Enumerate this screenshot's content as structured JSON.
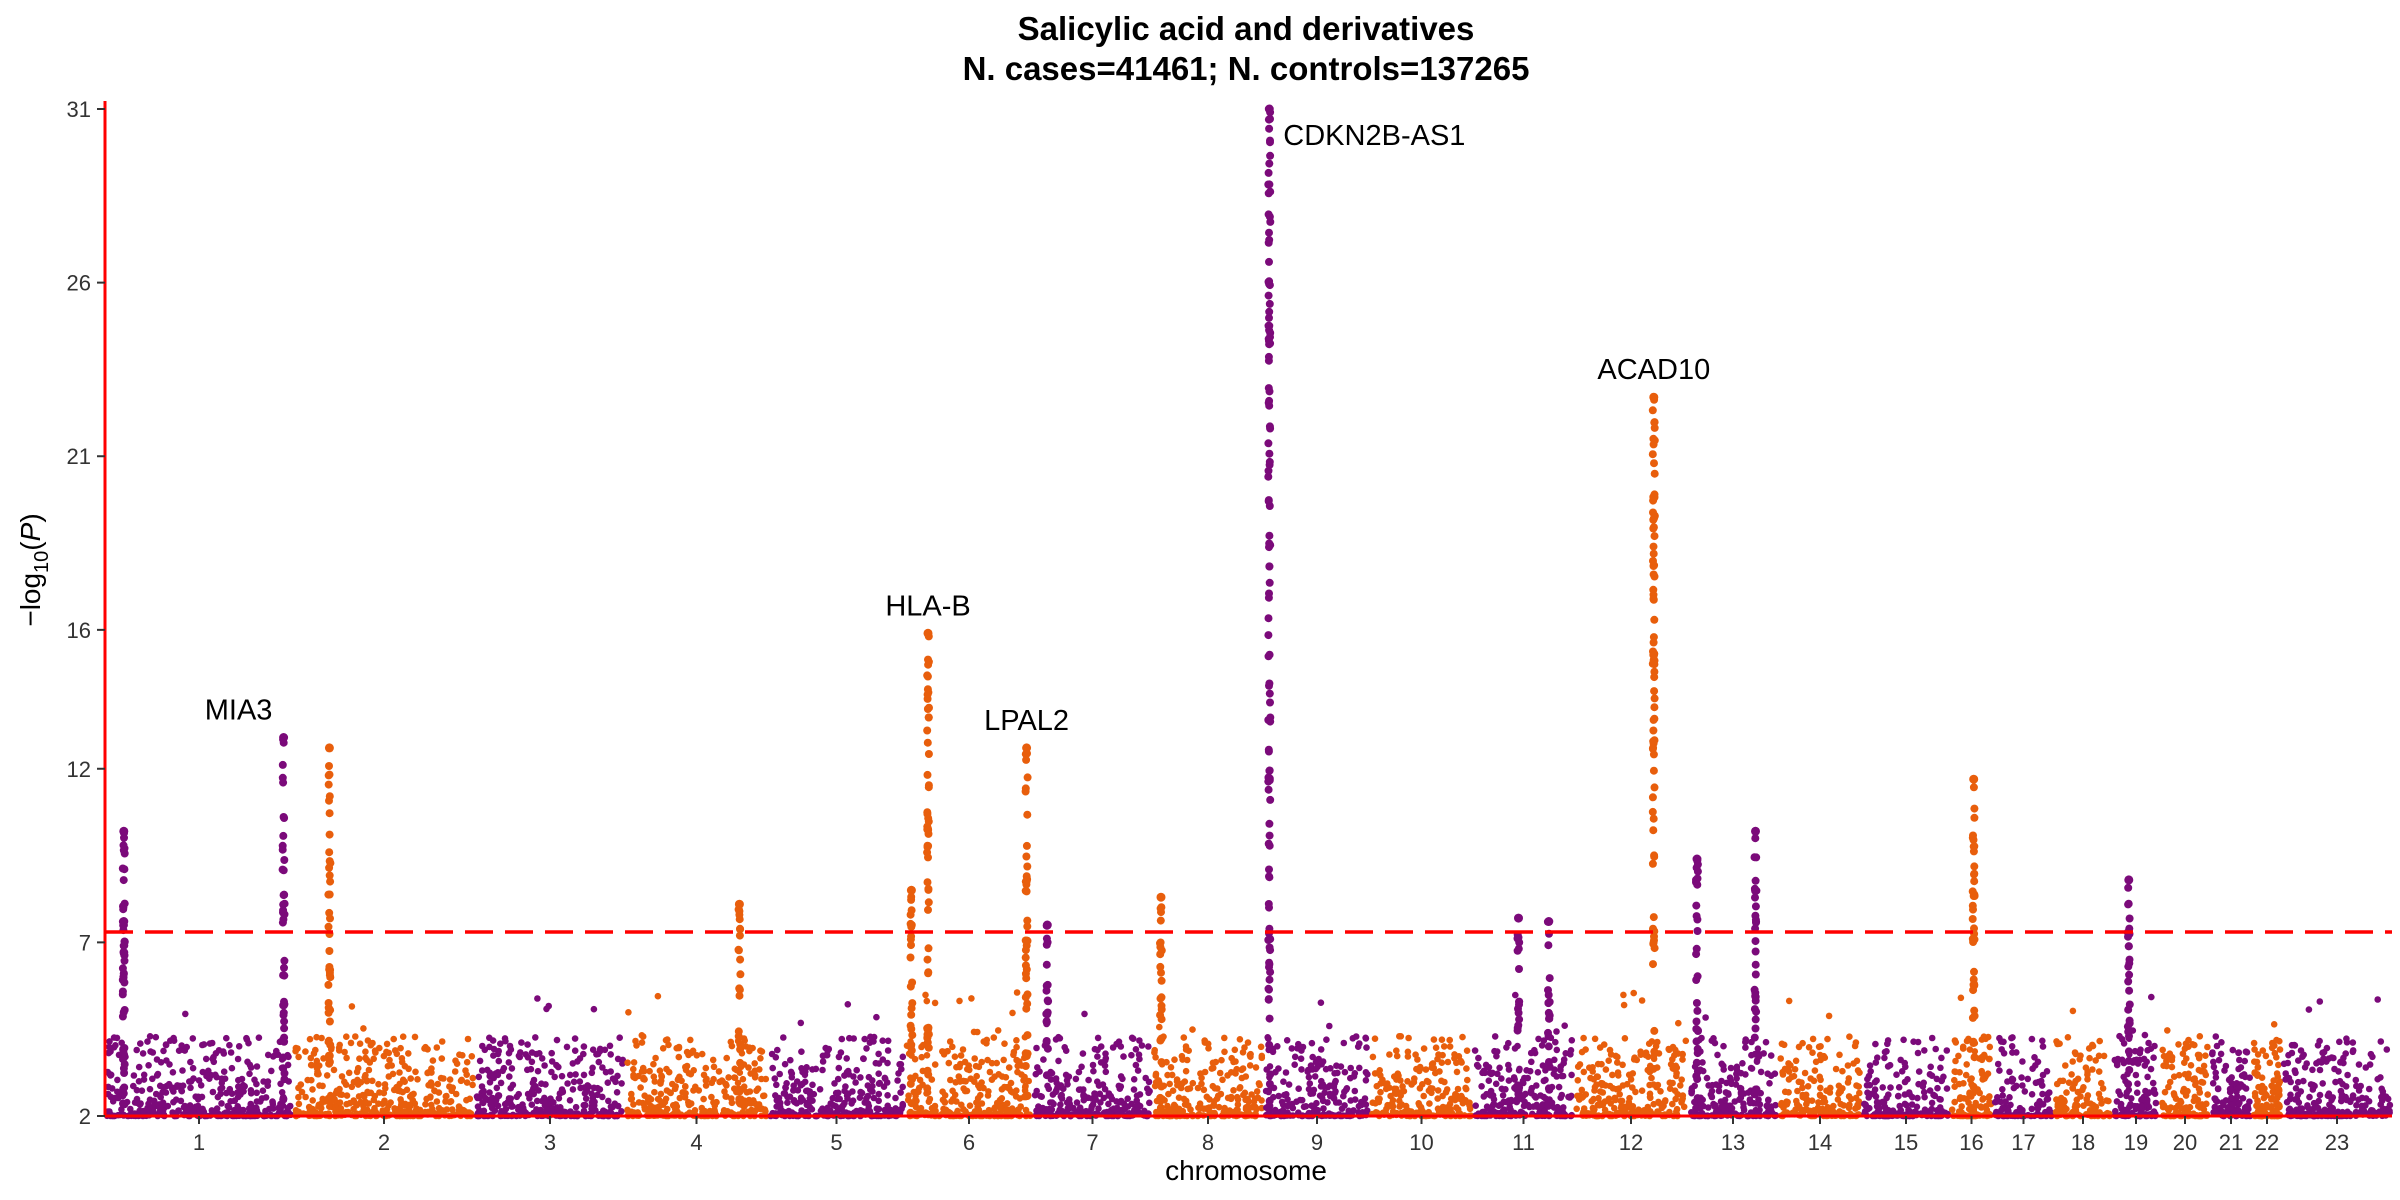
{
  "chart_data": {
    "type": "scatter",
    "title": "Salicylic acid and derivatives",
    "subtitle": "N. cases=41461; N. controls=137265",
    "xlabel": "chromosome",
    "ylabel": "−log10(P)",
    "ylim": [
      2,
      31
    ],
    "yticks": [
      "2",
      "7",
      "12",
      "16",
      "21",
      "26",
      "31"
    ],
    "significance_threshold": 7.3,
    "grid": false,
    "legend": "none",
    "colors": {
      "odd": "#7b0a7a",
      "even": "#e85e0c",
      "threshold": "#ff0000",
      "axis": "#ff0000"
    },
    "chromosomes": [
      "1",
      "2",
      "3",
      "4",
      "5",
      "6",
      "7",
      "8",
      "9",
      "10",
      "11",
      "12",
      "13",
      "14",
      "15",
      "16",
      "17",
      "18",
      "19",
      "20",
      "21",
      "22",
      "23"
    ],
    "peaks": [
      {
        "chr": "1",
        "pos": 0.1,
        "y": 10.2
      },
      {
        "chr": "1",
        "pos": 0.1,
        "y": 7.6
      },
      {
        "chr": "1",
        "pos": 0.95,
        "y": 12.9
      },
      {
        "chr": "2",
        "pos": 0.2,
        "y": 12.6
      },
      {
        "chr": "4",
        "pos": 0.8,
        "y": 8.1
      },
      {
        "chr": "6",
        "pos": 0.18,
        "y": 15.9
      },
      {
        "chr": "6",
        "pos": 0.05,
        "y": 8.5
      },
      {
        "chr": "6",
        "pos": 0.95,
        "y": 12.6
      },
      {
        "chr": "7",
        "pos": 0.12,
        "y": 7.5
      },
      {
        "chr": "8",
        "pos": 0.08,
        "y": 8.3
      },
      {
        "chr": "9",
        "pos": 0.05,
        "y": 31.0
      },
      {
        "chr": "11",
        "pos": 0.45,
        "y": 7.7
      },
      {
        "chr": "11",
        "pos": 0.75,
        "y": 7.6
      },
      {
        "chr": "12",
        "pos": 0.7,
        "y": 22.7
      },
      {
        "chr": "13",
        "pos": 0.1,
        "y": 9.4
      },
      {
        "chr": "13",
        "pos": 0.75,
        "y": 10.2
      },
      {
        "chr": "16",
        "pos": 0.55,
        "y": 11.7
      },
      {
        "chr": "19",
        "pos": 0.35,
        "y": 8.8
      }
    ],
    "annotations": [
      {
        "label": "MIA3",
        "chr": "1",
        "y": 12.9
      },
      {
        "label": "HLA-B",
        "chr": "6",
        "y": 15.9
      },
      {
        "label": "LPAL2",
        "chr": "6",
        "y": 12.6
      },
      {
        "label": "CDKN2B-AS1",
        "chr": "9",
        "y": 31.0
      },
      {
        "label": "ACAD10",
        "chr": "12",
        "y": 22.7
      }
    ]
  }
}
